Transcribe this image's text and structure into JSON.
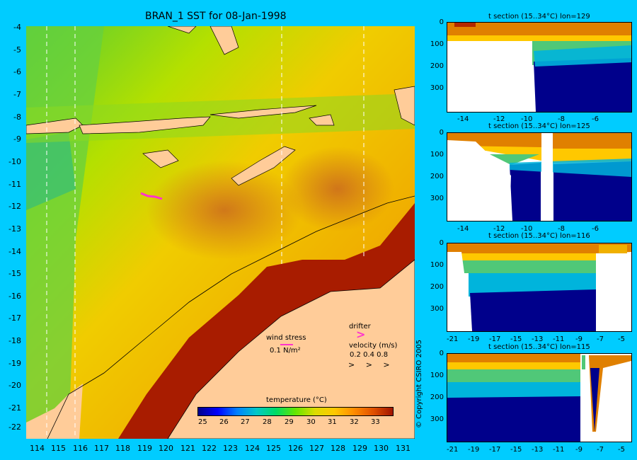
{
  "map": {
    "title": "BRAN_1 SST for 08-Jan-1998",
    "x_ticks": [
      "114",
      "115",
      "116",
      "117",
      "118",
      "119",
      "120",
      "121",
      "122",
      "123",
      "124",
      "125",
      "126",
      "127",
      "128",
      "129",
      "130",
      "131"
    ],
    "y_ticks": [
      "-4",
      "-5",
      "-6",
      "-7",
      "-8",
      "-9",
      "-10",
      "-11",
      "-12",
      "-13",
      "-14",
      "-15",
      "-16",
      "-17",
      "-18",
      "-19",
      "-20",
      "-21",
      "-22"
    ],
    "wind_stress_label": "wind stress",
    "wind_stress_value": "0.1 N/m²",
    "drifter_label": "drifter",
    "velocity_label": "velocity (m/s)",
    "velocity_values": "0.2 0.4 0.8",
    "velocity_symbols": "> > >",
    "colorbar_title": "temperature (°C)",
    "colorbar_ticks": [
      "25",
      "26",
      "27",
      "28",
      "29",
      "30",
      "31",
      "32",
      "33"
    ],
    "colorbar_colors": [
      "#00008b",
      "#0000ff",
      "#0080ff",
      "#00c8c8",
      "#00dc64",
      "#64e600",
      "#dcdc00",
      "#ffc800",
      "#ff8c00",
      "#e05000",
      "#a01400"
    ],
    "land_color": "#ffcc99"
  },
  "sections": [
    {
      "title": "t section (15..34°C) lon=129",
      "x_ticks": [
        "-14",
        "-12",
        "-10",
        "-8",
        "-6"
      ],
      "y_ticks": [
        "0",
        "100",
        "200",
        "300"
      ]
    },
    {
      "title": "t section (15..34°C) lon=125",
      "x_ticks": [
        "-14",
        "-12",
        "-10",
        "-8",
        "-6"
      ],
      "y_ticks": [
        "0",
        "100",
        "200",
        "300"
      ]
    },
    {
      "title": "t section (15..34°C) lon=116",
      "x_ticks": [
        "-21",
        "-19",
        "-17",
        "-15",
        "-13",
        "-11",
        "-9",
        "-7",
        "-5"
      ],
      "y_ticks": [
        "0",
        "100",
        "200",
        "300"
      ]
    },
    {
      "title": "t section (15..34°C) lon=115",
      "x_ticks": [
        "-21",
        "-19",
        "-17",
        "-15",
        "-13",
        "-11",
        "-9",
        "-7",
        "-5"
      ],
      "y_ticks": [
        "0",
        "100",
        "200",
        "300"
      ]
    }
  ],
  "copyright": "© Copyright CSIRO 2005"
}
